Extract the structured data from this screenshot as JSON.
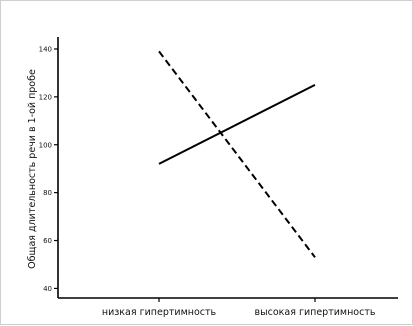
{
  "chart_data": {
    "type": "line",
    "title": "",
    "xlabel": "",
    "ylabel": "Общая длительность речи в 1-ой пробе",
    "categories": [
      "низкая гипертимность",
      "высокая гипертимность"
    ],
    "yticks": [
      40,
      60,
      80,
      100,
      120,
      140
    ],
    "ylim": [
      36,
      145
    ],
    "grid": false,
    "legend": "none",
    "series": [
      {
        "style": "solid",
        "color": "#000000",
        "values": [
          92,
          125
        ]
      },
      {
        "style": "dashed",
        "color": "#000000",
        "values": [
          139,
          53
        ]
      }
    ]
  }
}
